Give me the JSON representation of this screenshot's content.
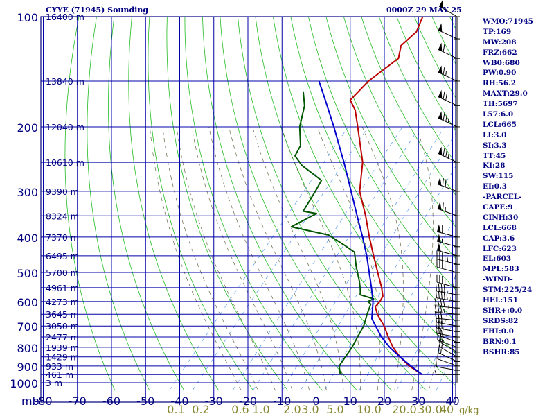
{
  "header": {
    "station_title": "CYYE (71945) Sounding",
    "valid_time": "0000Z 29 MAY 25"
  },
  "indices": [
    "WMO:71945",
    "TP:169",
    "MW:208",
    "FRZ:662",
    "WB0:680",
    "PW:0.90",
    "RH:56.2",
    "MAXT:29.0",
    "TH:5697",
    "L57:6.0",
    "LCL:665",
    "LI:3.0",
    "SI:3.3",
    "TT:45",
    "KI:28",
    "SW:115",
    "EI:0.3",
    "-PARCEL-",
    "CAPE:9",
    "CINH:30",
    "LCL:668",
    "CAP:3.6",
    "LFC:623",
    "EL:603",
    "MPL:583",
    "-WIND-",
    "STM:225/24",
    "HEL:151",
    "SHR+:0.0",
    "SRDS:82",
    "EHI:0.0",
    "BRN:0.1",
    "BSHR:85"
  ],
  "colors": {
    "frame": "#000080",
    "grid": "#0000aa",
    "dry_adiabat": "#22bb22",
    "moist_adiabat": "#666644",
    "mixing_ratio": "#5599ee",
    "temperature": "#bb0000",
    "dewpoint": "#005500",
    "parcel": "#0000cc",
    "height_label": "#000080",
    "mixing_label": "#888833",
    "wind": "#000000"
  },
  "chart_data": {
    "type": "skew-t",
    "title": "CYYE (71945) Sounding",
    "y_axis_unit": "mb",
    "x_axis_unit": "°C",
    "pressure_ticks": [
      100,
      200,
      300,
      400,
      500,
      600,
      700,
      800,
      900,
      1000
    ],
    "pressure_tick_labels": [
      "100",
      "200",
      "300",
      "400",
      "500",
      "600",
      "700",
      "800",
      "900",
      "1000"
    ],
    "temperature_ticks": [
      -80,
      -70,
      -60,
      -50,
      -40,
      -30,
      -20,
      -10,
      0,
      10,
      20,
      30,
      40
    ],
    "temperature_tick_labels": [
      "-80",
      "-70",
      "-60",
      "-50",
      "-40",
      "-30",
      "-20",
      "-10",
      "0",
      "10",
      "20",
      "30",
      "40"
    ],
    "xlim": [
      -80,
      40
    ],
    "ylim": [
      1000,
      100
    ],
    "grid": true,
    "height_labels": [
      {
        "p": 100,
        "label": "16400 m"
      },
      {
        "p": 150,
        "label": "13840 m"
      },
      {
        "p": 200,
        "label": "12040 m"
      },
      {
        "p": 250,
        "label": "10610 m"
      },
      {
        "p": 300,
        "label": "9390 m"
      },
      {
        "p": 350,
        "label": "8324 m"
      },
      {
        "p": 400,
        "label": "7370 m"
      },
      {
        "p": 450,
        "label": "6495 m"
      },
      {
        "p": 500,
        "label": "5700 m"
      },
      {
        "p": 550,
        "label": "4961 m"
      },
      {
        "p": 600,
        "label": "4273 m"
      },
      {
        "p": 650,
        "label": "3645 m"
      },
      {
        "p": 700,
        "label": "3050 m"
      },
      {
        "p": 750,
        "label": "2477 m"
      },
      {
        "p": 800,
        "label": "1939 m"
      },
      {
        "p": 850,
        "label": "1429 m"
      },
      {
        "p": 900,
        "label": "933 m"
      },
      {
        "p": 950,
        "label": "461 m"
      },
      {
        "p": 1000,
        "label": "3 m"
      }
    ],
    "mixing_ratio_labels": [
      "0.1",
      "0.2",
      "0.6",
      "1.0",
      "2.0",
      "3.0",
      "5.0",
      "10.0",
      "20.0",
      "30.0",
      "40"
    ],
    "mixing_ratio_unit": "g/kg",
    "mixing_ratios": [
      0.1,
      0.2,
      0.6,
      1.0,
      2.0,
      3.0,
      5.0,
      10.0,
      20.0,
      30.0,
      40.0
    ],
    "series": [
      {
        "name": "temperature",
        "points": [
          {
            "p": 950,
            "t": 29.0
          },
          {
            "p": 900,
            "t": 23.0
          },
          {
            "p": 850,
            "t": 18.0
          },
          {
            "p": 800,
            "t": 13.5
          },
          {
            "p": 750,
            "t": 9.5
          },
          {
            "p": 700,
            "t": 5.5
          },
          {
            "p": 650,
            "t": 0.5
          },
          {
            "p": 620,
            "t": -2.0
          },
          {
            "p": 600,
            "t": -2.0
          },
          {
            "p": 580,
            "t": -2.5
          },
          {
            "p": 550,
            "t": -5.0
          },
          {
            "p": 500,
            "t": -10.0
          },
          {
            "p": 450,
            "t": -15.5
          },
          {
            "p": 400,
            "t": -21.5
          },
          {
            "p": 350,
            "t": -28.0
          },
          {
            "p": 300,
            "t": -36.0
          },
          {
            "p": 250,
            "t": -42.5
          },
          {
            "p": 200,
            "t": -53.0
          },
          {
            "p": 180,
            "t": -58.0
          },
          {
            "p": 169,
            "t": -62.0
          },
          {
            "p": 150,
            "t": -61.5
          },
          {
            "p": 130,
            "t": -58.5
          },
          {
            "p": 120,
            "t": -61.0
          },
          {
            "p": 110,
            "t": -60.0
          },
          {
            "p": 100,
            "t": -62.0
          }
        ]
      },
      {
        "name": "dewpoint",
        "points": [
          {
            "p": 950,
            "t": 5.0
          },
          {
            "p": 900,
            "t": 2.5
          },
          {
            "p": 850,
            "t": 2.0
          },
          {
            "p": 800,
            "t": 1.5
          },
          {
            "p": 750,
            "t": 0.5
          },
          {
            "p": 700,
            "t": -0.5
          },
          {
            "p": 650,
            "t": -2.5
          },
          {
            "p": 610,
            "t": -4.0
          },
          {
            "p": 600,
            "t": -5.5
          },
          {
            "p": 590,
            "t": -4.5
          },
          {
            "p": 575,
            "t": -9.5
          },
          {
            "p": 560,
            "t": -10.5
          },
          {
            "p": 530,
            "t": -13.0
          },
          {
            "p": 480,
            "t": -18.0
          },
          {
            "p": 440,
            "t": -22.0
          },
          {
            "p": 420,
            "t": -27.0
          },
          {
            "p": 395,
            "t": -34.0
          },
          {
            "p": 375,
            "t": -47.0
          },
          {
            "p": 345,
            "t": -43.0
          },
          {
            "p": 340,
            "t": -47.5
          },
          {
            "p": 300,
            "t": -49.0
          },
          {
            "p": 280,
            "t": -50.0
          },
          {
            "p": 255,
            "t": -59.5
          },
          {
            "p": 240,
            "t": -64.0
          },
          {
            "p": 225,
            "t": -65.0
          },
          {
            "p": 200,
            "t": -70.0
          },
          {
            "p": 175,
            "t": -74.0
          },
          {
            "p": 160,
            "t": -78.0
          }
        ]
      },
      {
        "name": "parcel",
        "points": [
          {
            "p": 950,
            "t": 29.0
          },
          {
            "p": 900,
            "t": 23.5
          },
          {
            "p": 850,
            "t": 18.0
          },
          {
            "p": 800,
            "t": 12.5
          },
          {
            "p": 750,
            "t": 7.5
          },
          {
            "p": 700,
            "t": 3.0
          },
          {
            "p": 668,
            "t": 0.0
          },
          {
            "p": 600,
            "t": -4.0
          },
          {
            "p": 550,
            "t": -8.0
          },
          {
            "p": 500,
            "t": -12.5
          },
          {
            "p": 450,
            "t": -17.5
          },
          {
            "p": 400,
            "t": -23.5
          },
          {
            "p": 350,
            "t": -30.5
          },
          {
            "p": 300,
            "t": -38.5
          },
          {
            "p": 250,
            "t": -48.0
          },
          {
            "p": 200,
            "t": -60.0
          },
          {
            "p": 170,
            "t": -69.0
          },
          {
            "p": 150,
            "t": -76.0
          }
        ]
      }
    ],
    "wind_barbs": [
      {
        "p": 950,
        "dir": 270,
        "spd": 5
      },
      {
        "p": 925,
        "dir": 280,
        "spd": 10
      },
      {
        "p": 900,
        "dir": 290,
        "spd": 15
      },
      {
        "p": 875,
        "dir": 295,
        "spd": 15
      },
      {
        "p": 850,
        "dir": 300,
        "spd": 20
      },
      {
        "p": 825,
        "dir": 300,
        "spd": 20
      },
      {
        "p": 800,
        "dir": 290,
        "spd": 25
      },
      {
        "p": 775,
        "dir": 290,
        "spd": 25
      },
      {
        "p": 750,
        "dir": 280,
        "spd": 25
      },
      {
        "p": 725,
        "dir": 280,
        "spd": 30
      },
      {
        "p": 700,
        "dir": 280,
        "spd": 30
      },
      {
        "p": 675,
        "dir": 275,
        "spd": 30
      },
      {
        "p": 650,
        "dir": 275,
        "spd": 35
      },
      {
        "p": 625,
        "dir": 275,
        "spd": 40
      },
      {
        "p": 600,
        "dir": 280,
        "spd": 45
      },
      {
        "p": 575,
        "dir": 280,
        "spd": 45
      },
      {
        "p": 550,
        "dir": 285,
        "spd": 40
      },
      {
        "p": 500,
        "dir": 285,
        "spd": 40
      },
      {
        "p": 475,
        "dir": 285,
        "spd": 45
      },
      {
        "p": 450,
        "dir": 285,
        "spd": 50
      },
      {
        "p": 425,
        "dir": 285,
        "spd": 55
      },
      {
        "p": 400,
        "dir": 285,
        "spd": 60
      },
      {
        "p": 350,
        "dir": 290,
        "spd": 65
      },
      {
        "p": 300,
        "dir": 290,
        "spd": 70
      },
      {
        "p": 250,
        "dir": 295,
        "spd": 75
      },
      {
        "p": 200,
        "dir": 295,
        "spd": 75
      },
      {
        "p": 175,
        "dir": 295,
        "spd": 70
      },
      {
        "p": 150,
        "dir": 295,
        "spd": 65
      },
      {
        "p": 130,
        "dir": 295,
        "spd": 60
      },
      {
        "p": 115,
        "dir": 295,
        "spd": 50
      },
      {
        "p": 100,
        "dir": 300,
        "spd": 50
      }
    ]
  }
}
